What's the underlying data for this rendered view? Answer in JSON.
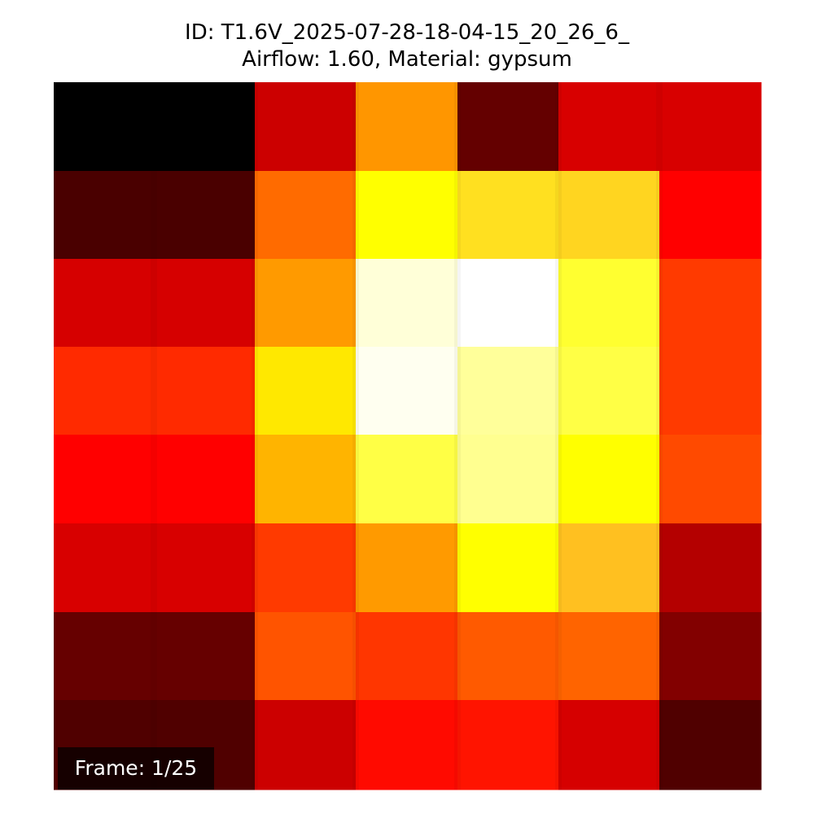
{
  "title": {
    "line1": "ID: T1.6V_2025-07-28-18-04-15_20_26_6_",
    "line2": "Airflow: 1.60, Material: gypsum"
  },
  "frame_label": "Frame: 1/25",
  "chart_data": {
    "type": "heatmap",
    "title": "ID: T1.6V_2025-07-28-18-04-15_20_26_6_\nAirflow: 1.60, Material: gypsum",
    "colormap": "hot",
    "axes_visible": false,
    "rows": 8,
    "cols": 7,
    "values": [
      [
        0.03,
        0.03,
        0.38,
        0.65,
        0.2,
        0.38,
        0.38
      ],
      [
        0.14,
        0.14,
        0.55,
        0.9,
        0.82,
        0.8,
        0.43
      ],
      [
        0.38,
        0.38,
        0.65,
        0.98,
        1.0,
        0.89,
        0.48
      ],
      [
        0.45,
        0.45,
        0.85,
        0.98,
        0.93,
        0.89,
        0.48
      ],
      [
        0.43,
        0.43,
        0.76,
        0.9,
        0.93,
        0.86,
        0.5
      ],
      [
        0.38,
        0.38,
        0.48,
        0.66,
        0.86,
        0.72,
        0.35
      ],
      [
        0.2,
        0.2,
        0.5,
        0.47,
        0.5,
        0.52,
        0.25
      ],
      [
        0.16,
        0.16,
        0.37,
        0.42,
        0.43,
        0.38,
        0.14
      ]
    ],
    "colors": [
      [
        "#000000",
        "#000000",
        "#cc0000",
        "#ff9600",
        "#640000",
        "#d80000",
        "#d80000"
      ],
      [
        "#4a0000",
        "#4a0000",
        "#ff6b00",
        "#ffff00",
        "#ffe020",
        "#ffd520",
        "#ff0000"
      ],
      [
        "#d60000",
        "#d60000",
        "#ff9a00",
        "#ffffd8",
        "#ffffff",
        "#ffff30",
        "#ff3a00"
      ],
      [
        "#ff2a00",
        "#ff2a00",
        "#ffe800",
        "#fffff0",
        "#ffff9a",
        "#ffff45",
        "#ff3a00"
      ],
      [
        "#ff0000",
        "#ff0000",
        "#ffb400",
        "#ffff45",
        "#ffff90",
        "#ffff00",
        "#ff4a00"
      ],
      [
        "#d80000",
        "#d80000",
        "#ff3a00",
        "#ff9a00",
        "#ffff00",
        "#ffc020",
        "#b40000"
      ],
      [
        "#660000",
        "#660000",
        "#ff5400",
        "#ff3600",
        "#ff5a00",
        "#ff6400",
        "#820000"
      ],
      [
        "#500000",
        "#500000",
        "#cc0000",
        "#ff0a00",
        "#ff1400",
        "#d60000",
        "#500000"
      ]
    ]
  }
}
